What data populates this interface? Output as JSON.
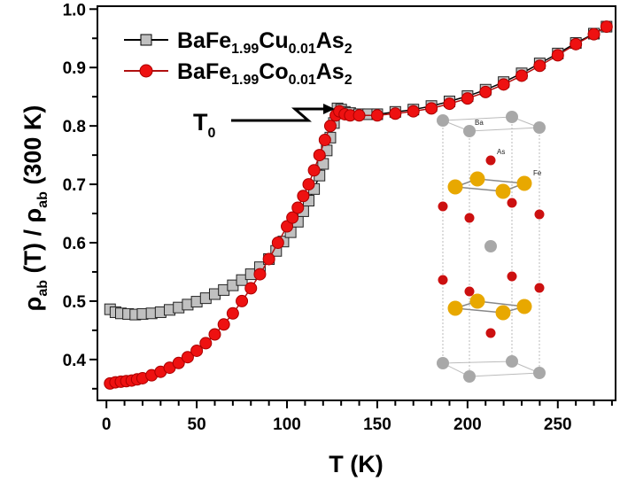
{
  "chart_data": {
    "type": "line",
    "xlabel": "T (K)",
    "ylabel": {
      "main": "ρ",
      "sub1": "ab",
      "mid": " (T) / ρ",
      "sub2": "ab",
      "end": " (300 K)"
    },
    "xlim": [
      -5,
      282
    ],
    "ylim": [
      0.33,
      1.005
    ],
    "xticks": [
      0,
      50,
      100,
      150,
      200,
      250
    ],
    "yticks": [
      "0.4",
      "0.5",
      "0.6",
      "0.7",
      "0.8",
      "0.9",
      "1.0"
    ],
    "grid": false,
    "legend_placement": "top-left",
    "annotation": {
      "text": "T",
      "sub": "0",
      "points_to": [
        128,
        0.83
      ]
    },
    "series": [
      {
        "name": "BaFe1.99Cu0.01As2",
        "label_parts": [
          "BaFe",
          "1.99",
          "Cu",
          "0.01",
          "As",
          "2"
        ],
        "marker": "square",
        "line_color": "#000000",
        "marker_fill": "#c0c0c0",
        "points": [
          [
            2,
            0.486
          ],
          [
            5,
            0.481
          ],
          [
            8,
            0.479
          ],
          [
            12,
            0.478
          ],
          [
            16,
            0.477
          ],
          [
            20,
            0.478
          ],
          [
            25,
            0.479
          ],
          [
            30,
            0.481
          ],
          [
            35,
            0.485
          ],
          [
            40,
            0.489
          ],
          [
            45,
            0.494
          ],
          [
            50,
            0.499
          ],
          [
            55,
            0.505
          ],
          [
            60,
            0.512
          ],
          [
            65,
            0.519
          ],
          [
            70,
            0.527
          ],
          [
            75,
            0.536
          ],
          [
            80,
            0.546
          ],
          [
            85,
            0.558
          ],
          [
            90,
            0.572
          ],
          [
            94,
            0.586
          ],
          [
            98,
            0.602
          ],
          [
            102,
            0.618
          ],
          [
            106,
            0.636
          ],
          [
            109,
            0.654
          ],
          [
            112,
            0.672
          ],
          [
            115,
            0.692
          ],
          [
            118,
            0.715
          ],
          [
            120,
            0.735
          ],
          [
            122,
            0.758
          ],
          [
            124,
            0.78
          ],
          [
            126,
            0.805
          ],
          [
            128,
            0.83
          ],
          [
            130,
            0.828
          ],
          [
            132,
            0.824
          ],
          [
            135,
            0.822
          ],
          [
            140,
            0.82
          ],
          [
            145,
            0.82
          ],
          [
            150,
            0.82
          ],
          [
            160,
            0.824
          ],
          [
            170,
            0.828
          ],
          [
            180,
            0.834
          ],
          [
            190,
            0.842
          ],
          [
            200,
            0.851
          ],
          [
            210,
            0.862
          ],
          [
            220,
            0.875
          ],
          [
            230,
            0.89
          ],
          [
            240,
            0.907
          ],
          [
            250,
            0.924
          ],
          [
            260,
            0.942
          ],
          [
            270,
            0.958
          ],
          [
            277,
            0.97
          ]
        ]
      },
      {
        "name": "BaFe1.99Co0.01As2",
        "label_parts": [
          "BaFe",
          "1.99",
          "Co",
          "0.01",
          "As",
          "2"
        ],
        "marker": "circle",
        "line_color": "#b01010",
        "marker_fill": "#ee1111",
        "points": [
          [
            2,
            0.359
          ],
          [
            5,
            0.361
          ],
          [
            8,
            0.362
          ],
          [
            11,
            0.363
          ],
          [
            14,
            0.364
          ],
          [
            17,
            0.366
          ],
          [
            20,
            0.368
          ],
          [
            25,
            0.373
          ],
          [
            30,
            0.379
          ],
          [
            35,
            0.386
          ],
          [
            40,
            0.394
          ],
          [
            45,
            0.404
          ],
          [
            50,
            0.415
          ],
          [
            55,
            0.428
          ],
          [
            60,
            0.443
          ],
          [
            65,
            0.46
          ],
          [
            70,
            0.479
          ],
          [
            75,
            0.5
          ],
          [
            80,
            0.522
          ],
          [
            85,
            0.546
          ],
          [
            90,
            0.572
          ],
          [
            95,
            0.6
          ],
          [
            100,
            0.628
          ],
          [
            103,
            0.643
          ],
          [
            106,
            0.66
          ],
          [
            109,
            0.68
          ],
          [
            112,
            0.7
          ],
          [
            115,
            0.724
          ],
          [
            118,
            0.75
          ],
          [
            121,
            0.776
          ],
          [
            124,
            0.8
          ],
          [
            127,
            0.818
          ],
          [
            129,
            0.825
          ],
          [
            132,
            0.82
          ],
          [
            135,
            0.818
          ],
          [
            140,
            0.818
          ],
          [
            150,
            0.818
          ],
          [
            160,
            0.821
          ],
          [
            170,
            0.825
          ],
          [
            180,
            0.83
          ],
          [
            190,
            0.838
          ],
          [
            200,
            0.847
          ],
          [
            210,
            0.858
          ],
          [
            220,
            0.871
          ],
          [
            230,
            0.886
          ],
          [
            240,
            0.903
          ],
          [
            250,
            0.921
          ],
          [
            260,
            0.94
          ],
          [
            270,
            0.957
          ],
          [
            277,
            0.97
          ]
        ]
      }
    ],
    "inset": {
      "labels": {
        "ba": "Ba",
        "as": "As",
        "fe": "Fe"
      },
      "colors": {
        "ba": "#a8a8a8",
        "as": "#cc1010",
        "fe": "#e8a800"
      }
    }
  }
}
